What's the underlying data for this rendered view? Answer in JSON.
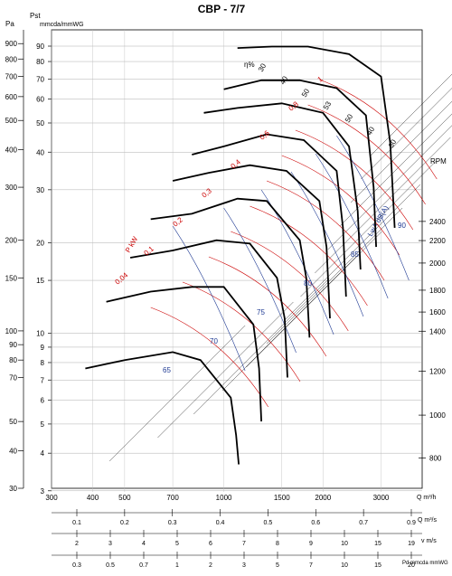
{
  "chart_data": {
    "type": "line",
    "title": "CBP - 7/7",
    "x_axis": {
      "scale": "log",
      "range": [
        300,
        4000
      ],
      "unit": "Q m³/h",
      "ticks": [
        300,
        400,
        500,
        700,
        1000,
        1500,
        2000,
        3000
      ]
    },
    "y_axis": {
      "scale": "log",
      "range": [
        30,
        1000
      ],
      "unit_left": "Pa",
      "unit_right": "mmcda/mmWG",
      "header_left": "Pst",
      "ticks_pa": [
        30,
        40,
        50,
        70,
        80,
        90,
        100,
        150,
        200,
        300,
        400,
        500,
        600,
        700,
        800,
        900
      ],
      "ticks_mm": [
        3,
        4,
        5,
        6,
        7,
        8,
        9,
        10,
        15,
        20,
        30,
        40,
        50,
        60,
        70,
        80,
        90
      ]
    },
    "rpm_axis": {
      "label": "RPM",
      "ticks": [
        800,
        1000,
        1200,
        1400,
        1600,
        1800,
        2000,
        2200,
        2400
      ]
    },
    "bottom_scales": [
      {
        "unit": "Q m³/s",
        "ticks": [
          "0.1",
          "0.2",
          "0.3",
          "0.4",
          "0.5",
          "0.6",
          "0.7",
          "0.9"
        ]
      },
      {
        "unit": "v m/s",
        "ticks": [
          "2",
          "3",
          "4",
          "5",
          "6",
          "7",
          "8",
          "9",
          "10",
          "15",
          "19"
        ]
      },
      {
        "unit": "Pd mmcda mmWG",
        "ticks": [
          "0.3",
          "0.5",
          "0.7",
          "1",
          "2",
          "3",
          "5",
          "7",
          "10",
          "15",
          "20"
        ]
      }
    ],
    "efficiency": {
      "label": "η%",
      "values": [
        "30",
        "40",
        "50",
        "53",
        "50",
        "40",
        "30"
      ]
    },
    "power": {
      "label": "P kW",
      "values": [
        "0,04",
        "0,1",
        "0,2",
        "0,3",
        "0,4",
        "0,6",
        "0,8",
        "1"
      ]
    },
    "noise": {
      "label": "LwA dB(A)",
      "values": [
        "65",
        "70",
        "75",
        "80",
        "85",
        "90"
      ]
    },
    "series": [
      {
        "rpm": 2400,
        "points": [
          [
            1100,
            870
          ],
          [
            1400,
            880
          ],
          [
            1800,
            880
          ],
          [
            2400,
            830
          ],
          [
            3000,
            700
          ],
          [
            3200,
            420
          ],
          [
            3300,
            220
          ]
        ]
      },
      {
        "rpm": 2200,
        "points": [
          [
            1000,
            635
          ],
          [
            1300,
            680
          ],
          [
            1700,
            680
          ],
          [
            2200,
            640
          ],
          [
            2700,
            520
          ],
          [
            2850,
            300
          ],
          [
            2900,
            190
          ]
        ]
      },
      {
        "rpm": 2000,
        "points": [
          [
            870,
            530
          ],
          [
            1100,
            550
          ],
          [
            1500,
            570
          ],
          [
            2000,
            530
          ],
          [
            2400,
            410
          ],
          [
            2550,
            250
          ],
          [
            2600,
            160
          ]
        ]
      },
      {
        "rpm": 1800,
        "points": [
          [
            800,
            385
          ],
          [
            1000,
            410
          ],
          [
            1350,
            450
          ],
          [
            1750,
            430
          ],
          [
            2200,
            340
          ],
          [
            2300,
            220
          ],
          [
            2350,
            130
          ]
        ]
      },
      {
        "rpm": 1600,
        "points": [
          [
            700,
            315
          ],
          [
            900,
            335
          ],
          [
            1200,
            355
          ],
          [
            1550,
            340
          ],
          [
            1950,
            270
          ],
          [
            2050,
            190
          ],
          [
            2100,
            110
          ]
        ]
      },
      {
        "rpm": 1400,
        "points": [
          [
            600,
            235
          ],
          [
            800,
            245
          ],
          [
            1100,
            275
          ],
          [
            1350,
            270
          ],
          [
            1700,
            200
          ],
          [
            1780,
            150
          ],
          [
            1820,
            95
          ]
        ]
      },
      {
        "rpm": 1200,
        "points": [
          [
            520,
            175
          ],
          [
            700,
            185
          ],
          [
            950,
            200
          ],
          [
            1200,
            195
          ],
          [
            1450,
            150
          ],
          [
            1530,
            110
          ],
          [
            1560,
            70
          ]
        ]
      },
      {
        "rpm": 1000,
        "points": [
          [
            440,
            125
          ],
          [
            600,
            135
          ],
          [
            800,
            140
          ],
          [
            1000,
            140
          ],
          [
            1230,
            105
          ],
          [
            1280,
            75
          ],
          [
            1300,
            50
          ]
        ]
      },
      {
        "rpm": 800,
        "points": [
          [
            380,
            75
          ],
          [
            500,
            80
          ],
          [
            700,
            85
          ],
          [
            850,
            80
          ],
          [
            1050,
            60
          ],
          [
            1090,
            45
          ],
          [
            1110,
            36
          ]
        ]
      }
    ]
  }
}
